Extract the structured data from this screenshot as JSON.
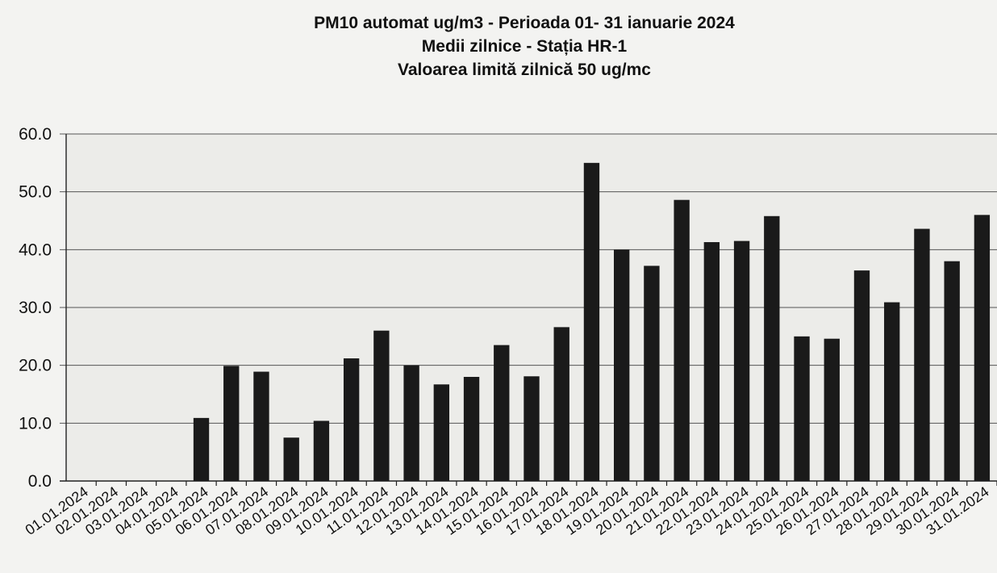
{
  "chart_data": {
    "type": "bar",
    "title": "PM10 automat ug/m3 - Perioada 01- 31 ianuarie  2024",
    "subtitle": "Medii zilnice - Stația HR-1",
    "subtitle2": "Valoarea limită zilnică 50 ug/mc",
    "xlabel": "",
    "ylabel": "",
    "ylim": [
      0,
      60
    ],
    "yticks": [
      "0.0",
      "10.0",
      "20.0",
      "30.0",
      "40.0",
      "50.0",
      "60.0"
    ],
    "grid": true,
    "bar_color": "#1a1a1a",
    "categories": [
      "01.01.2024",
      "02.01.2024",
      "03.01.2024",
      "04.01.2024",
      "05.01.2024",
      "06.01.2024",
      "07.01.2024",
      "08.01.2024",
      "09.01.2024",
      "10.01.2024",
      "11.01.2024",
      "12.01.2024",
      "13.01.2024",
      "14.01.2024",
      "15.01.2024",
      "16.01.2024",
      "17.01.2024",
      "18.01.2024",
      "19.01.2024",
      "20.01.2024",
      "21.01.2024",
      "22.01.2024",
      "23.01.2024",
      "24.01.2024",
      "25.01.2024",
      "26.01.2024",
      "27.01.2024",
      "28.01.2024",
      "29.01.2024",
      "30.01.2024",
      "31.01.2024"
    ],
    "values": [
      null,
      null,
      null,
      null,
      10.9,
      19.9,
      18.9,
      7.5,
      10.4,
      21.2,
      26.0,
      20.0,
      16.7,
      18.0,
      23.5,
      18.1,
      26.6,
      55.0,
      40.0,
      37.2,
      48.6,
      41.3,
      41.5,
      45.8,
      25.0,
      24.6,
      36.4,
      30.9,
      43.6,
      38.0,
      46.0
    ]
  }
}
